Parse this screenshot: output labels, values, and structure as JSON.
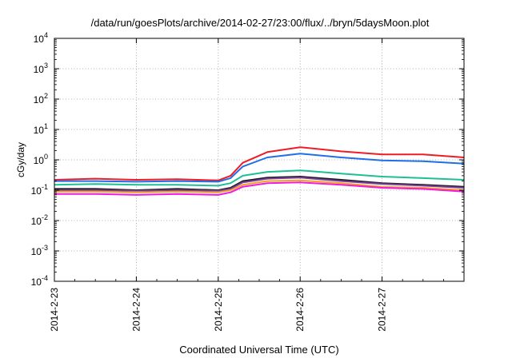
{
  "chart_data": {
    "type": "line",
    "title": "/data/run/goesPlots/archive/2014-02-27/23:00/flux/../bryn/5daysMoon.plot",
    "xlabel": "Coordinated Universal Time (UTC)",
    "ylabel": "cGy/day",
    "x_ticks": [
      "2014-2-23",
      "2014-2-24",
      "2014-2-25",
      "2014-2-26",
      "2014-2-27"
    ],
    "xlim": [
      0,
      5
    ],
    "y_scale": "log",
    "ylim": [
      0.0001,
      10000
    ],
    "y_ticks": [
      {
        "base": "10",
        "exp": "4",
        "value": 10000
      },
      {
        "base": "10",
        "exp": "3",
        "value": 1000
      },
      {
        "base": "10",
        "exp": "2",
        "value": 100
      },
      {
        "base": "10",
        "exp": "1",
        "value": 10
      },
      {
        "base": "10",
        "exp": "0",
        "value": 1
      },
      {
        "base": "10",
        "exp": "-1",
        "value": 0.1
      },
      {
        "base": "10",
        "exp": "-2",
        "value": 0.01
      },
      {
        "base": "10",
        "exp": "-3",
        "value": 0.001
      },
      {
        "base": "10",
        "exp": "-4",
        "value": 0.0001
      }
    ],
    "grid": true,
    "series": [
      {
        "color": "#ee1c25",
        "x": [
          0,
          0.5,
          1.0,
          1.5,
          2.0,
          2.15,
          2.3,
          2.6,
          3.0,
          3.5,
          4.0,
          4.5,
          5.0
        ],
        "values": [
          0.22,
          0.24,
          0.22,
          0.23,
          0.21,
          0.3,
          0.8,
          1.8,
          2.6,
          1.9,
          1.5,
          1.5,
          1.2
        ]
      },
      {
        "color": "#1f6fe8",
        "x": [
          0,
          0.5,
          1.0,
          1.5,
          2.0,
          2.15,
          2.3,
          2.6,
          3.0,
          3.5,
          4.0,
          4.5,
          5.0
        ],
        "values": [
          0.2,
          0.2,
          0.19,
          0.2,
          0.19,
          0.25,
          0.6,
          1.2,
          1.6,
          1.2,
          0.95,
          0.9,
          0.75
        ]
      },
      {
        "color": "#1dbf94",
        "x": [
          0,
          0.5,
          1.0,
          1.5,
          2.0,
          2.15,
          2.3,
          2.6,
          3.0,
          3.5,
          4.0,
          4.5,
          5.0
        ],
        "values": [
          0.15,
          0.16,
          0.15,
          0.15,
          0.14,
          0.17,
          0.3,
          0.4,
          0.45,
          0.35,
          0.28,
          0.25,
          0.22
        ]
      },
      {
        "color": "#1a1a1a",
        "x": [
          0,
          0.5,
          1.0,
          1.5,
          2.0,
          2.15,
          2.3,
          2.6,
          3.0,
          3.5,
          4.0,
          4.5,
          5.0
        ],
        "values": [
          0.11,
          0.11,
          0.1,
          0.11,
          0.1,
          0.12,
          0.2,
          0.26,
          0.28,
          0.22,
          0.17,
          0.15,
          0.13
        ]
      },
      {
        "color": "#7b3fa0",
        "x": [
          0,
          0.5,
          1.0,
          1.5,
          2.0,
          2.15,
          2.3,
          2.6,
          3.0,
          3.5,
          4.0,
          4.5,
          5.0
        ],
        "values": [
          0.1,
          0.1,
          0.095,
          0.1,
          0.095,
          0.11,
          0.18,
          0.24,
          0.26,
          0.2,
          0.16,
          0.14,
          0.12
        ]
      },
      {
        "color": "#f4a020",
        "x": [
          0,
          0.5,
          1.0,
          1.5,
          2.0,
          2.15,
          2.3,
          2.6,
          3.0,
          3.5,
          4.0,
          4.5,
          5.0
        ],
        "values": [
          0.09,
          0.09,
          0.085,
          0.09,
          0.085,
          0.1,
          0.15,
          0.2,
          0.21,
          0.17,
          0.13,
          0.12,
          0.1
        ]
      },
      {
        "color": "#ee1ce0",
        "x": [
          0,
          0.5,
          1.0,
          1.5,
          2.0,
          2.15,
          2.3,
          2.6,
          3.0,
          3.5,
          4.0,
          4.5,
          5.0
        ],
        "values": [
          0.075,
          0.075,
          0.07,
          0.075,
          0.07,
          0.085,
          0.13,
          0.17,
          0.18,
          0.15,
          0.12,
          0.11,
          0.09
        ]
      }
    ]
  }
}
